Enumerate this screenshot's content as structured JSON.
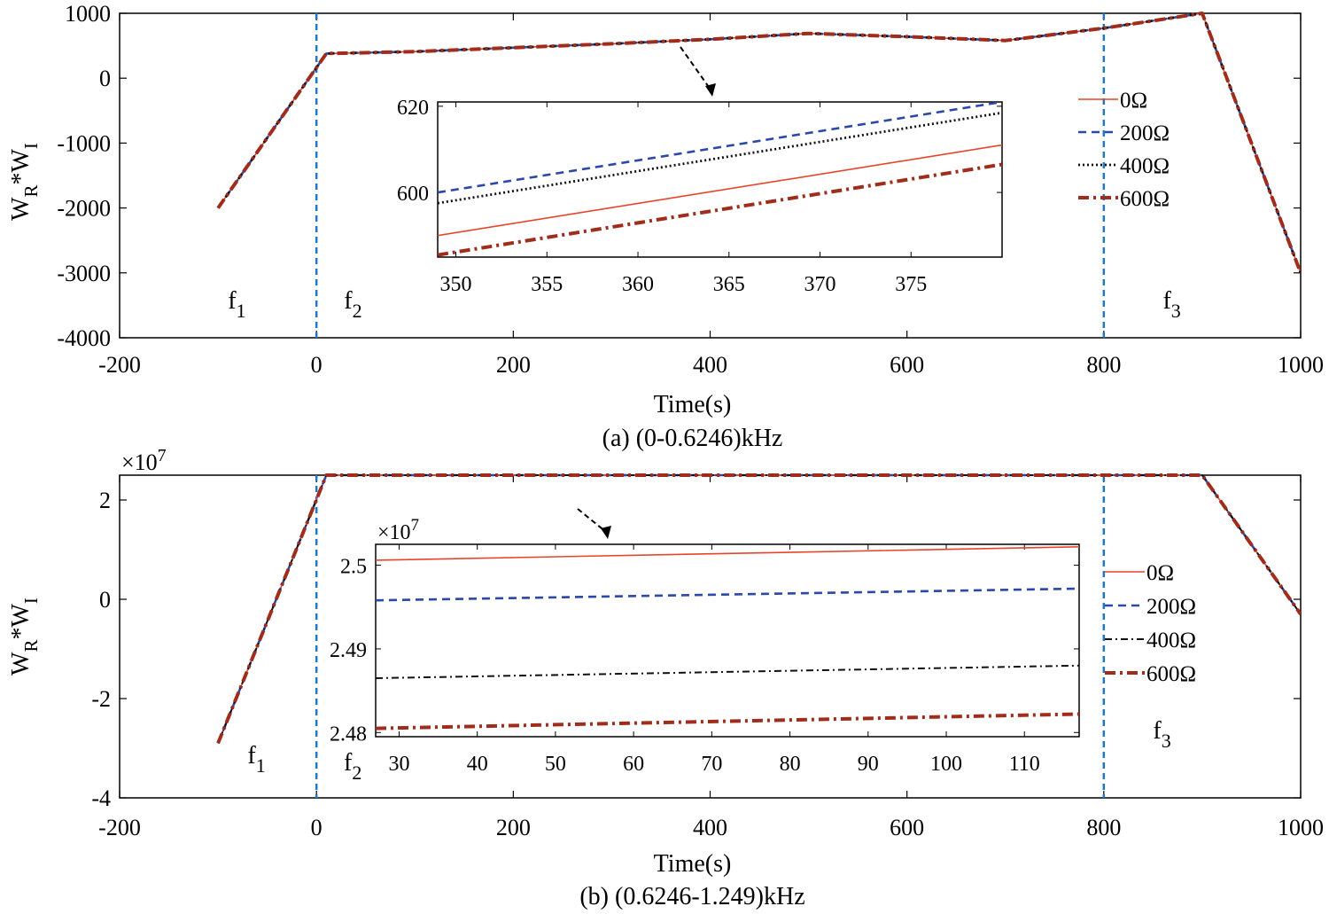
{
  "chart_data": [
    {
      "id": "a",
      "type": "line",
      "caption": "(a) (0-0.6246)kHz",
      "xlabel": "Time(s)",
      "ylabel": {
        "main": "W",
        "sub1": "R",
        "mid": "*W",
        "sub2": "I"
      },
      "xlim": [
        -200,
        1000
      ],
      "ylim": [
        -4000,
        1000
      ],
      "xticks": [
        -200,
        0,
        200,
        400,
        600,
        800,
        1000
      ],
      "yticks": [
        -4000,
        -3000,
        -2000,
        -1000,
        0,
        1000
      ],
      "exponent": "",
      "series": [
        {
          "name": "0Ω",
          "color": "#e8442a",
          "style": "solid",
          "x": [
            -100,
            10,
            100,
            200,
            300,
            400,
            500,
            600,
            700,
            800,
            900,
            1000
          ],
          "y": [
            -2000,
            380,
            410,
            470,
            530,
            600,
            690,
            640,
            580,
            770,
            1000,
            -3000
          ]
        },
        {
          "name": "200Ω",
          "color": "#2b49a6",
          "style": "dash",
          "x": [
            -100,
            10,
            100,
            200,
            300,
            400,
            500,
            600,
            700,
            800,
            900,
            1000
          ],
          "y": [
            -2000,
            380,
            410,
            470,
            530,
            600,
            690,
            640,
            580,
            770,
            1000,
            -3000
          ]
        },
        {
          "name": "400Ω",
          "color": "#111111",
          "style": "dot",
          "x": [
            -100,
            10,
            100,
            200,
            300,
            400,
            500,
            600,
            700,
            800,
            900,
            1000
          ],
          "y": [
            -2000,
            380,
            410,
            470,
            530,
            600,
            690,
            640,
            580,
            770,
            1000,
            -3000
          ]
        },
        {
          "name": "600Ω",
          "color": "#a02c1c",
          "style": "dashdot",
          "x": [
            -100,
            10,
            100,
            200,
            300,
            400,
            500,
            600,
            700,
            800,
            900,
            1000
          ],
          "y": [
            -2000,
            380,
            410,
            470,
            530,
            600,
            690,
            640,
            580,
            770,
            1000,
            -3000
          ]
        }
      ],
      "vlines": [
        0,
        800
      ],
      "annotations": [
        {
          "text": "f",
          "sub": "1",
          "x": -90,
          "y": -3550
        },
        {
          "text": "f",
          "sub": "2",
          "x": 28,
          "y": -3550
        },
        {
          "text": "f",
          "sub": "3",
          "x": 860,
          "y": -3550
        }
      ],
      "inset": {
        "xlim": [
          349,
          380
        ],
        "ylim": [
          585,
          621
        ],
        "xticks": [
          350,
          355,
          360,
          365,
          370,
          375
        ],
        "yticks": [
          600,
          620
        ],
        "exponent": "",
        "series": [
          {
            "name": "0Ω",
            "x": [
              349,
              380
            ],
            "y": [
              590,
              611
            ]
          },
          {
            "name": "200Ω",
            "x": [
              349,
              380
            ],
            "y": [
              600,
              621
            ]
          },
          {
            "name": "400Ω",
            "x": [
              349,
              380
            ],
            "y": [
              597.5,
              618.5
            ]
          },
          {
            "name": "600Ω",
            "x": [
              349,
              380
            ],
            "y": [
              585.5,
              606.5
            ]
          }
        ]
      },
      "legend": [
        "0Ω",
        "200Ω",
        "400Ω",
        "600Ω"
      ]
    },
    {
      "id": "b",
      "type": "line",
      "caption": "(b) (0.6246-1.249)kHz",
      "xlabel": "Time(s)",
      "ylabel": {
        "main": "W",
        "sub1": "R",
        "mid": "*W",
        "sub2": "I"
      },
      "xlim": [
        -200,
        1000
      ],
      "ylim": [
        -4,
        2.5
      ],
      "xticks": [
        -200,
        0,
        200,
        400,
        600,
        800,
        1000
      ],
      "yticks": [
        -4,
        -2,
        0,
        2
      ],
      "exponent": "×10",
      "exponent_power": "7",
      "series": [
        {
          "name": "0Ω",
          "color": "#e8442a",
          "style": "solid",
          "x": [
            -100,
            10,
            100,
            200,
            300,
            400,
            500,
            600,
            700,
            800,
            900,
            1000
          ],
          "y": [
            -2.9,
            2.5,
            2.5,
            2.5,
            2.5,
            2.5,
            2.5,
            2.5,
            2.5,
            2.5,
            2.5,
            -0.3
          ]
        },
        {
          "name": "200Ω",
          "color": "#2b49a6",
          "style": "dash",
          "x": [
            -100,
            10,
            100,
            200,
            300,
            400,
            500,
            600,
            700,
            800,
            900,
            1000
          ],
          "y": [
            -2.9,
            2.5,
            2.5,
            2.5,
            2.5,
            2.5,
            2.5,
            2.5,
            2.5,
            2.5,
            2.5,
            -0.3
          ]
        },
        {
          "name": "400Ω",
          "color": "#111111",
          "style": "dashdot-thin",
          "x": [
            -100,
            10,
            100,
            200,
            300,
            400,
            500,
            600,
            700,
            800,
            900,
            1000
          ],
          "y": [
            -2.9,
            2.5,
            2.5,
            2.5,
            2.5,
            2.5,
            2.5,
            2.5,
            2.5,
            2.5,
            2.5,
            -0.3
          ]
        },
        {
          "name": "600Ω",
          "color": "#a02c1c",
          "style": "dashdot",
          "x": [
            -100,
            10,
            100,
            200,
            300,
            400,
            500,
            600,
            700,
            800,
            900,
            1000
          ],
          "y": [
            -2.9,
            2.5,
            2.5,
            2.5,
            2.5,
            2.5,
            2.5,
            2.5,
            2.5,
            2.5,
            2.5,
            -0.3
          ]
        }
      ],
      "vlines": [
        0,
        800
      ],
      "annotations": [
        {
          "text": "f",
          "sub": "1",
          "x": -70,
          "y": -3.3
        },
        {
          "text": "f",
          "sub": "3",
          "x": 850,
          "y": -2.8
        }
      ],
      "inset": {
        "xlim": [
          27,
          117
        ],
        "ylim": [
          2.4795,
          2.5025
        ],
        "xticks": [
          30,
          40,
          50,
          60,
          70,
          80,
          90,
          100,
          110
        ],
        "yticks": [
          2.48,
          2.49,
          2.5
        ],
        "exponent": "×10",
        "exponent_power": "7",
        "series": [
          {
            "name": "0Ω",
            "x": [
              27,
              117
            ],
            "y": [
              2.5006,
              2.5022
            ]
          },
          {
            "name": "200Ω",
            "x": [
              27,
              117
            ],
            "y": [
              2.4958,
              2.4972
            ]
          },
          {
            "name": "400Ω",
            "x": [
              27,
              117
            ],
            "y": [
              2.4865,
              2.488
            ]
          },
          {
            "name": "600Ω",
            "x": [
              27,
              117
            ],
            "y": [
              2.4805,
              2.4822
            ]
          }
        ],
        "annotation": {
          "text": "f",
          "sub": "2"
        }
      },
      "legend": [
        "0Ω",
        "200Ω",
        "400Ω",
        "600Ω"
      ]
    }
  ]
}
